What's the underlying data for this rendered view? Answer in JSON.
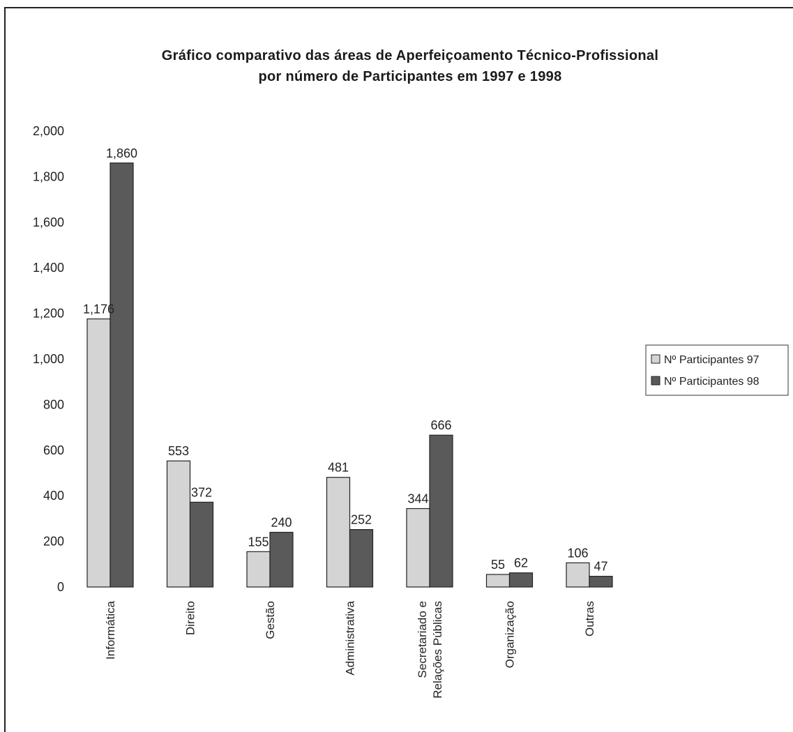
{
  "chart_data": {
    "type": "bar",
    "title": "Gráfico comparativo das áreas de Aperfeiçoamento Técnico-Profissional",
    "subtitle": "por número de Participantes em 1997 e 1998",
    "categories": [
      [
        "Informática"
      ],
      [
        "Direito"
      ],
      [
        "Gestão"
      ],
      [
        "Administrativa"
      ],
      [
        "Secretariado e",
        "Relações Públicas"
      ],
      [
        "Organização"
      ],
      [
        "Outras"
      ]
    ],
    "series": [
      {
        "name": "Nº Participantes 97",
        "values": [
          1176,
          553,
          155,
          481,
          344,
          55,
          106
        ],
        "color": "#d4d4d4"
      },
      {
        "name": "Nº Participantes 98",
        "values": [
          1860,
          372,
          240,
          252,
          666,
          62,
          47
        ],
        "color": "#5a5a5a"
      }
    ],
    "data_labels": [
      [
        "1,176",
        "553",
        "155",
        "481",
        "344",
        "55",
        "106"
      ],
      [
        "1,860",
        "372",
        "240",
        "252",
        "666",
        "62",
        "47"
      ]
    ],
    "y_ticks": [
      "0",
      "200",
      "400",
      "600",
      "800",
      "1,000",
      "1,200",
      "1,400",
      "1,600",
      "1,800",
      "2,000"
    ],
    "ylim": [
      0,
      2000
    ],
    "xlabel": "",
    "ylabel": "",
    "legend_position": "right",
    "grid": false
  }
}
